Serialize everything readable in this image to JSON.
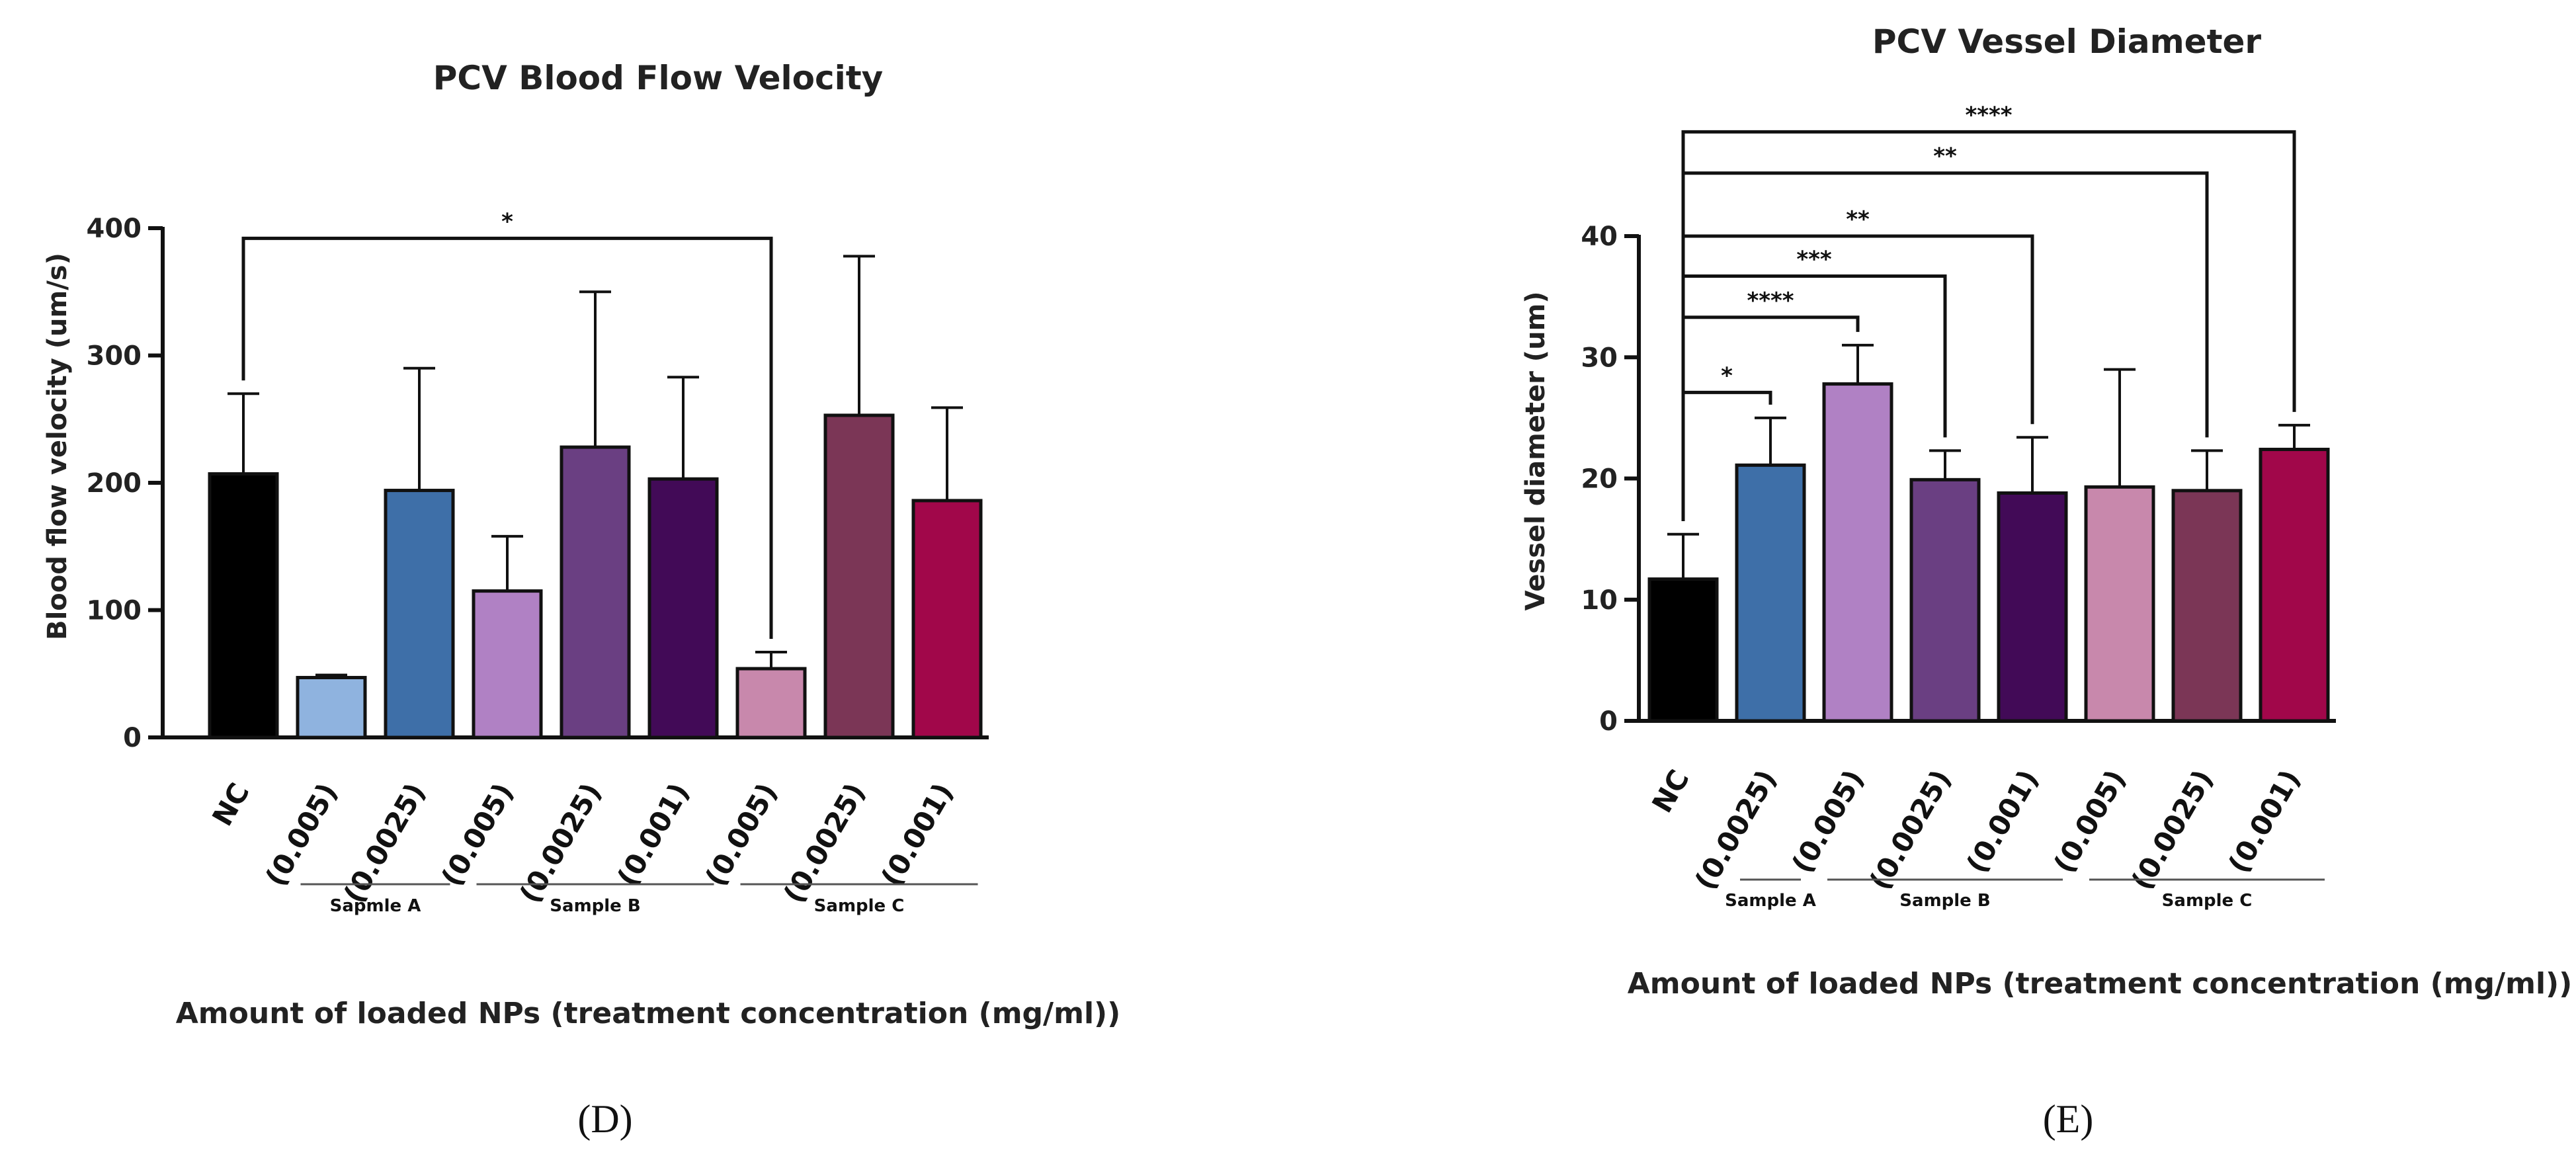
{
  "chart_data": [
    {
      "type": "bar",
      "panel": "(D)",
      "title": "PCV Blood Flow Velocity",
      "ylabel": "Blood flow velocity (um/s)",
      "xlabel": "Amount of loaded NPs (treatment concentration (mg/ml))",
      "ylim": [
        0,
        400
      ],
      "yticks": [
        0,
        100,
        200,
        300,
        400
      ],
      "categories": [
        "NC",
        "(0.005)",
        "(0.0025)",
        "(0.005)",
        "(0.0025)",
        "(0.001)",
        "(0.005)",
        "(0.0025)",
        "(0.001)"
      ],
      "values": [
        207,
        47,
        194,
        115,
        228,
        203,
        54,
        253,
        186
      ],
      "error_upper": [
        270,
        49,
        290,
        158,
        350,
        283,
        67,
        378,
        259
      ],
      "colors": [
        "#000000",
        "#8fb3df",
        "#3e6fa8",
        "#b081c4",
        "#6a3f82",
        "#420a57",
        "#c888ac",
        "#7b3656",
        "#a1074a"
      ],
      "groups": [
        {
          "label": "Sapmle A",
          "from": 1,
          "to": 2
        },
        {
          "label": "Sample B",
          "from": 3,
          "to": 5
        },
        {
          "label": "Sample C",
          "from": 6,
          "to": 8
        }
      ],
      "significance": [
        {
          "from": 0,
          "to": 6,
          "label": "*",
          "bracket_y": 392
        }
      ]
    },
    {
      "type": "bar",
      "panel": "(E)",
      "title": "PCV Vessel Diameter",
      "ylabel": "Vessel diameter (um)",
      "xlabel": "Amount of loaded NPs (treatment concentration (mg/ml))",
      "ylim": [
        0,
        40
      ],
      "yticks": [
        0,
        10,
        20,
        30,
        40
      ],
      "categories": [
        "NC",
        "(0.0025)",
        "(0.005)",
        "(0.0025)",
        "(0.001)",
        "(0.005)",
        "(0.0025)",
        "(0.001)"
      ],
      "values": [
        11.7,
        21.1,
        27.8,
        19.9,
        18.8,
        19.3,
        19.0,
        22.4
      ],
      "error_upper": [
        15.4,
        25.0,
        31.0,
        22.3,
        23.4,
        29.0,
        22.3,
        24.4
      ],
      "colors": [
        "#000000",
        "#3e6fa8",
        "#b081c4",
        "#6a3f82",
        "#420a57",
        "#c888ac",
        "#7b3656",
        "#a1074a"
      ],
      "groups": [
        {
          "label": "Sample A",
          "from": 1,
          "to": 1
        },
        {
          "label": "Sample B",
          "from": 2,
          "to": 4
        },
        {
          "label": "Sample C",
          "from": 5,
          "to": 7
        }
      ],
      "significance": [
        {
          "from": 0,
          "to": 1,
          "label": "*",
          "bracket_y": 27.1
        },
        {
          "from": 0,
          "to": 2,
          "label": "****",
          "bracket_y": 33.3
        },
        {
          "from": 0,
          "to": 3,
          "label": "***",
          "bracket_y": 36.7
        },
        {
          "from": 0,
          "to": 4,
          "label": "**",
          "bracket_y": 40.0
        },
        {
          "from": 0,
          "to": 6,
          "label": "**",
          "bracket_y": 45.2
        },
        {
          "from": 0,
          "to": 7,
          "label": "****",
          "bracket_y": 48.6
        }
      ]
    }
  ]
}
